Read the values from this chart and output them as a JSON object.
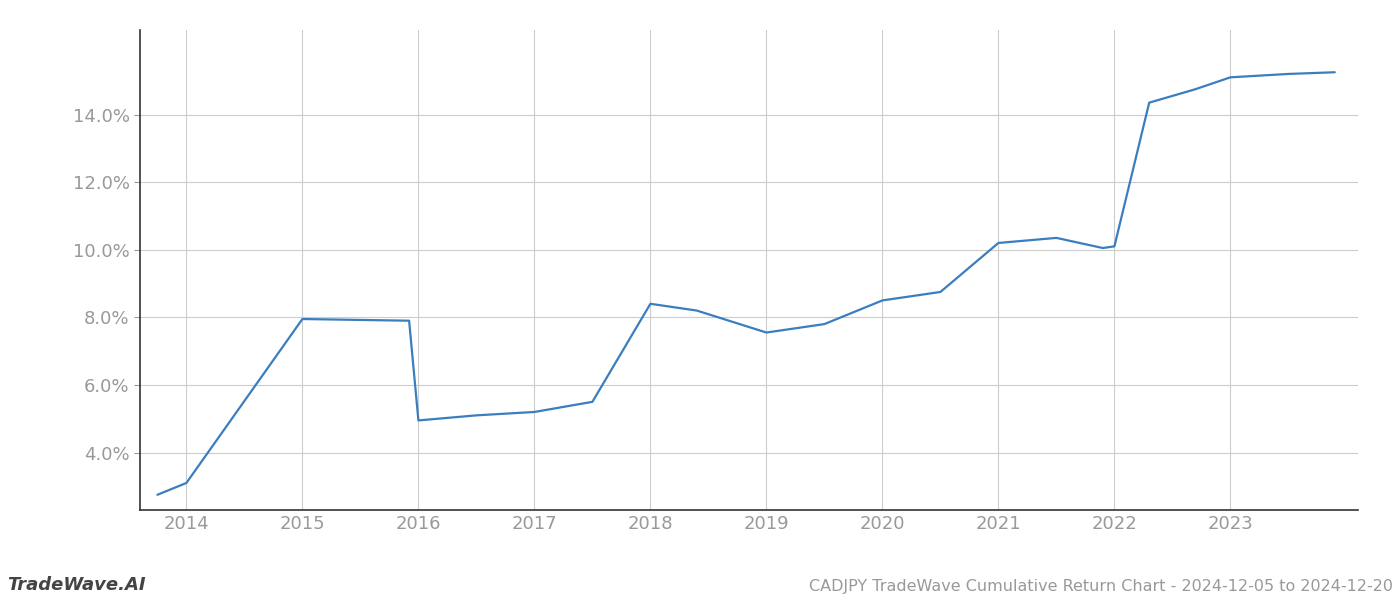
{
  "title": "CADJPY TradeWave Cumulative Return Chart - 2024-12-05 to 2024-12-20",
  "watermark": "TradeWave.AI",
  "line_color": "#3a7ebf",
  "background_color": "#ffffff",
  "grid_color": "#cccccc",
  "x_values": [
    2013.75,
    2014.0,
    2015.0,
    2015.92,
    2016.0,
    2016.5,
    2017.0,
    2017.5,
    2018.0,
    2018.4,
    2019.0,
    2019.5,
    2020.0,
    2020.5,
    2021.0,
    2021.5,
    2021.9,
    2022.0,
    2022.3,
    2022.7,
    2023.0,
    2023.5,
    2023.9
  ],
  "y_values": [
    2.75,
    3.1,
    7.95,
    7.9,
    4.95,
    5.1,
    5.2,
    5.5,
    8.4,
    8.2,
    7.55,
    7.8,
    8.5,
    8.75,
    10.2,
    10.35,
    10.05,
    10.1,
    14.35,
    14.75,
    15.1,
    15.2,
    15.25
  ],
  "xtick_labels": [
    "2014",
    "2015",
    "2016",
    "2017",
    "2018",
    "2019",
    "2020",
    "2021",
    "2022",
    "2023"
  ],
  "xtick_positions": [
    2014,
    2015,
    2016,
    2017,
    2018,
    2019,
    2020,
    2021,
    2022,
    2023
  ],
  "ytick_values": [
    4.0,
    6.0,
    8.0,
    10.0,
    12.0,
    14.0
  ],
  "ylim": [
    2.3,
    16.5
  ],
  "xlim": [
    2013.6,
    2024.1
  ],
  "line_width": 1.6,
  "tick_color": "#999999",
  "spine_color": "#333333",
  "tick_fontsize": 13,
  "title_fontsize": 11.5,
  "watermark_fontsize": 13
}
